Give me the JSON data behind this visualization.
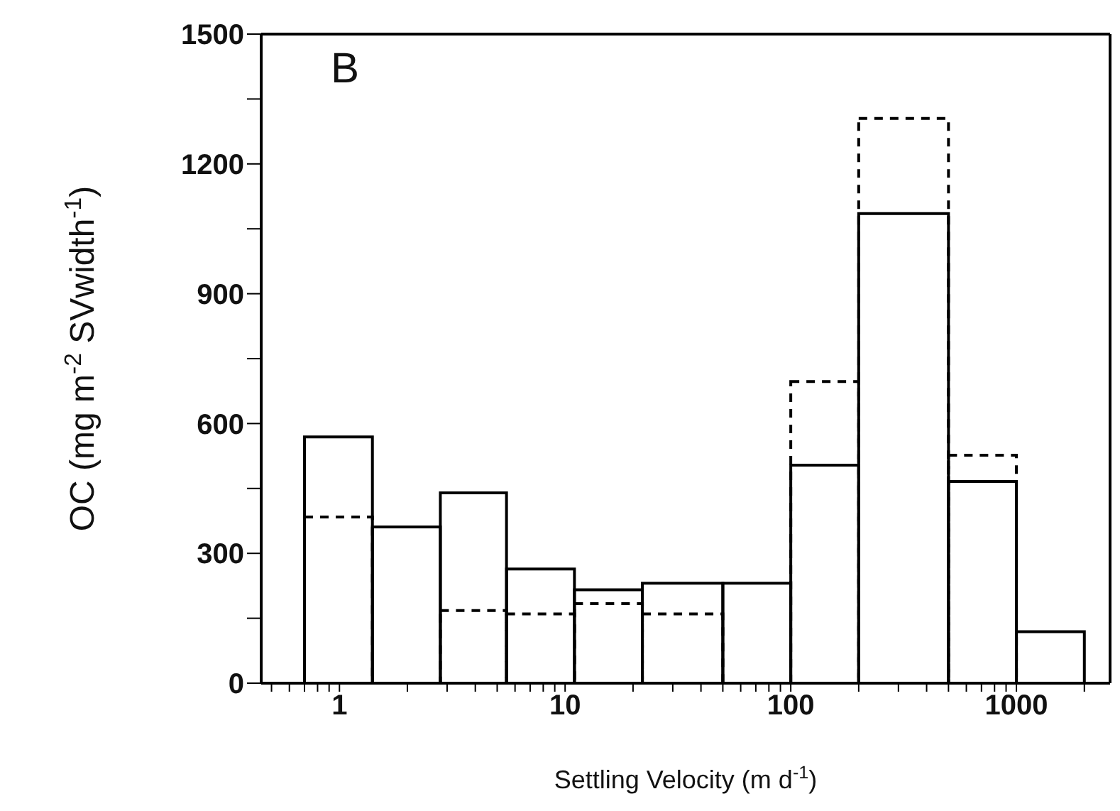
{
  "chart_data": {
    "type": "histogram",
    "xlabel": "Settling Velocity (m d$^{-1}$)",
    "ylabel": "OC (mg m$^{-2}$ SVwidth$^{-1}$)",
    "annotations": [
      "B"
    ],
    "bins": [
      0.7,
      1.4,
      2.8,
      5.5,
      11,
      22,
      50,
      100,
      200,
      500,
      1000,
      2000
    ],
    "series": [
      {
        "color": "#000000",
        "line_style": "dashed",
        "values": [
          384,
          null,
          168,
          160,
          184,
          160,
          null,
          697,
          1305,
          527,
          null
        ]
      },
      {
        "color": "#000000",
        "line_style": "solid",
        "values": [
          569,
          361,
          440,
          264,
          216,
          231,
          231,
          504,
          1085,
          466,
          119
        ]
      }
    ],
    "xlim": [
      0.45,
      2600
    ],
    "log": "x",
    "yticks": [
      0,
      {
        "value": 150,
        "label": null
      },
      300,
      {
        "value": 450,
        "label": null
      },
      600,
      {
        "value": 750,
        "label": null
      },
      900,
      {
        "value": 1050,
        "label": null
      },
      1200,
      {
        "value": 1350,
        "label": null
      },
      1500
    ],
    "xticks": [
      {
        "value": 0.5,
        "label": null
      },
      {
        "value": 0.6,
        "label": null
      },
      {
        "value": 0.7,
        "label": null
      },
      {
        "value": 0.8,
        "label": null
      },
      {
        "value": 0.9,
        "label": null
      },
      1,
      {
        "value": 2,
        "label": null
      },
      {
        "value": 3,
        "label": null
      },
      {
        "value": 4,
        "label": null
      },
      {
        "value": 5,
        "label": null
      },
      {
        "value": 6,
        "label": null
      },
      {
        "value": 7,
        "label": null
      },
      {
        "value": 8,
        "label": null
      },
      {
        "value": 9,
        "label": null
      },
      10,
      {
        "value": 20,
        "label": null
      },
      {
        "value": 30,
        "label": null
      },
      {
        "value": 40,
        "label": null
      },
      {
        "value": 50,
        "label": null
      },
      {
        "value": 60,
        "label": null
      },
      {
        "value": 70,
        "label": null
      },
      {
        "value": 80,
        "label": null
      },
      {
        "value": 90,
        "label": null
      },
      100,
      {
        "value": 200,
        "label": null
      },
      {
        "value": 300,
        "label": null
      },
      {
        "value": 400,
        "label": null
      },
      {
        "value": 500,
        "label": null
      },
      {
        "value": 600,
        "label": null
      },
      {
        "value": 700,
        "label": null
      },
      {
        "value": 800,
        "label": null
      },
      {
        "value": 900,
        "label": null
      },
      1000,
      {
        "value": 2000,
        "label": null
      }
    ],
    "ylim": [
      0,
      1500
    ]
  }
}
